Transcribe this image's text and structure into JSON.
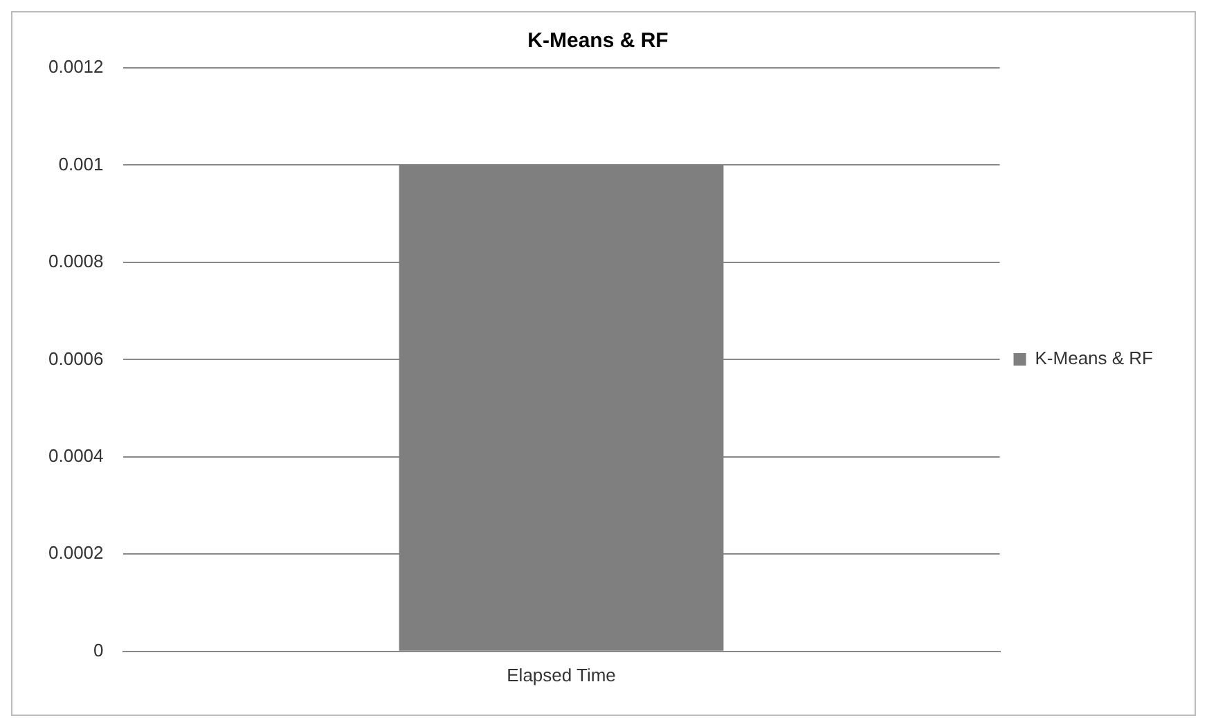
{
  "chart_data": {
    "type": "bar",
    "title": "K-Means & RF",
    "categories": [
      "Elapsed Time"
    ],
    "series": [
      {
        "name": "K-Means & RF",
        "color": "#7f7f7f",
        "values": [
          0.001
        ]
      }
    ],
    "ylim": [
      0,
      0.0012
    ],
    "yticks": [
      0,
      0.0002,
      0.0004,
      0.0006,
      0.0008,
      0.001,
      0.0012
    ],
    "grid": "y",
    "legend": "right"
  }
}
